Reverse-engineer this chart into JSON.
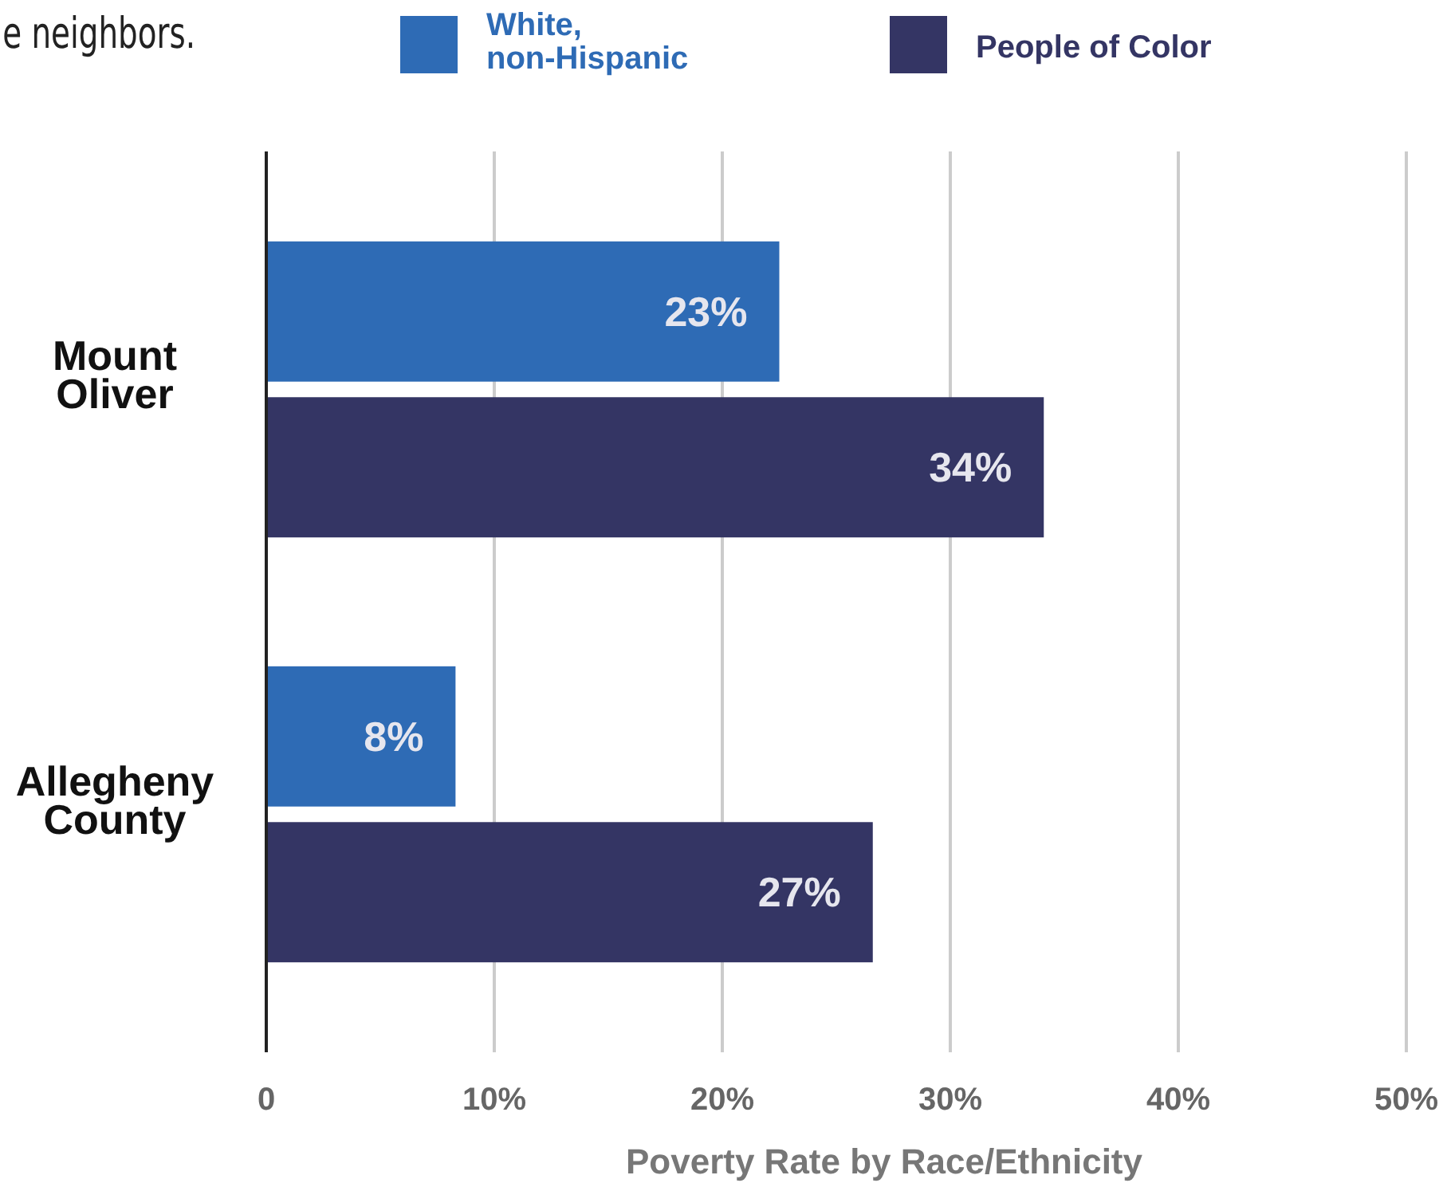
{
  "chart_data": {
    "type": "bar",
    "orientation": "horizontal",
    "xlabel": "Poverty Rate by Race/Ethnicity",
    "annotations": [
      "e neighbors."
    ],
    "categories": [
      "Mount Oliver",
      "Allegheny County"
    ],
    "series": [
      {
        "name": "White, non-Hispanic",
        "color": "#2e6bb5",
        "values": [
          22.5,
          8.3
        ],
        "value_labels": [
          "23%",
          "8%"
        ]
      },
      {
        "name": "People of Color",
        "color": "#343564",
        "values": [
          34.1,
          26.6
        ],
        "value_labels": [
          "34%",
          "27%"
        ]
      }
    ],
    "xlim": [
      0,
      50
    ],
    "xticks": [
      0,
      {
        "value": 10,
        "label": "10%"
      },
      {
        "value": 20,
        "label": "20%"
      },
      {
        "value": 30,
        "label": "30%"
      },
      {
        "value": 40,
        "label": "40%"
      },
      {
        "value": 50,
        "label": "50%"
      }
    ],
    "grid": "x",
    "legend": "top"
  }
}
